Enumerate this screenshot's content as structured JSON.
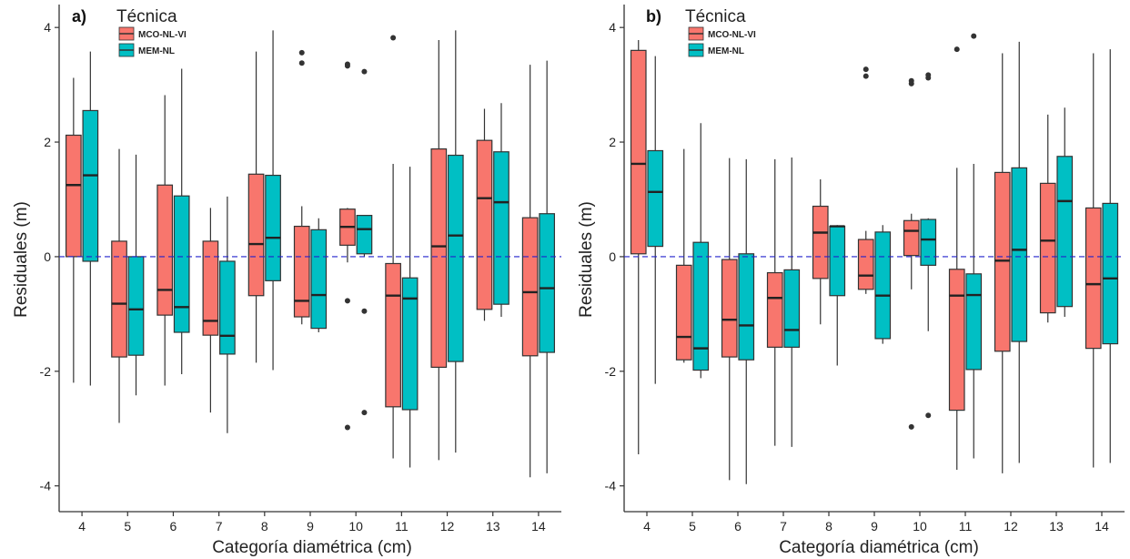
{
  "chart_data": [
    {
      "type": "boxplot",
      "panel_label": "a)",
      "xlabel": "Categoría diamétrica (cm)",
      "ylabel": "Residuales (m)",
      "ylim": [
        -4.45,
        4.4
      ],
      "yticks": [
        -4,
        -2,
        0,
        2,
        4
      ],
      "reference_line": {
        "y": 0,
        "style": "dashed",
        "color": "#2222cc"
      },
      "legend": {
        "title": "Técnica",
        "placement": "top-left"
      },
      "categories": [
        "4",
        "5",
        "6",
        "7",
        "8",
        "9",
        "10",
        "11",
        "12",
        "13",
        "14"
      ],
      "series": [
        {
          "name": "MCO-NL-VI",
          "color": "#F8766D",
          "boxes": [
            {
              "min": -2.2,
              "q1": 0.0,
              "median": 1.25,
              "q3": 2.12,
              "max": 3.12,
              "outliers": []
            },
            {
              "min": -2.9,
              "q1": -1.75,
              "median": -0.82,
              "q3": 0.27,
              "max": 1.88,
              "outliers": []
            },
            {
              "min": -2.25,
              "q1": -1.02,
              "median": -0.58,
              "q3": 1.25,
              "max": 2.82,
              "outliers": []
            },
            {
              "min": -2.72,
              "q1": -1.37,
              "median": -1.12,
              "q3": 0.27,
              "max": 0.85,
              "outliers": []
            },
            {
              "min": -1.85,
              "q1": -0.68,
              "median": 0.22,
              "q3": 1.44,
              "max": 3.58,
              "outliers": []
            },
            {
              "min": -1.18,
              "q1": -1.05,
              "median": -0.77,
              "q3": 0.53,
              "max": 0.88,
              "outliers": [
                3.56,
                3.38
              ]
            },
            {
              "min": -0.1,
              "q1": 0.2,
              "median": 0.52,
              "q3": 0.83,
              "max": 0.85,
              "outliers": [
                3.36,
                3.33,
                -0.77,
                -2.98
              ]
            },
            {
              "min": -3.52,
              "q1": -2.62,
              "median": -0.68,
              "q3": -0.12,
              "max": 1.62,
              "outliers": [
                3.82
              ]
            },
            {
              "min": -3.55,
              "q1": -1.93,
              "median": 0.18,
              "q3": 1.88,
              "max": 3.78,
              "outliers": []
            },
            {
              "min": -1.12,
              "q1": -0.92,
              "median": 1.02,
              "q3": 2.03,
              "max": 2.58,
              "outliers": []
            },
            {
              "min": -3.85,
              "q1": -1.73,
              "median": -0.62,
              "q3": 0.68,
              "max": 3.35,
              "outliers": []
            }
          ]
        },
        {
          "name": "MEM-NL",
          "color": "#00BFC4",
          "boxes": [
            {
              "min": -2.25,
              "q1": -0.08,
              "median": 1.42,
              "q3": 2.55,
              "max": 3.58,
              "outliers": []
            },
            {
              "min": -2.42,
              "q1": -1.72,
              "median": -0.92,
              "q3": 0.0,
              "max": 1.78,
              "outliers": []
            },
            {
              "min": -2.05,
              "q1": -1.32,
              "median": -0.88,
              "q3": 1.06,
              "max": 3.28,
              "outliers": []
            },
            {
              "min": -3.08,
              "q1": -1.7,
              "median": -1.38,
              "q3": -0.08,
              "max": 1.05,
              "outliers": []
            },
            {
              "min": -1.98,
              "q1": -0.42,
              "median": 0.33,
              "q3": 1.42,
              "max": 3.95,
              "outliers": []
            },
            {
              "min": -1.32,
              "q1": -1.25,
              "median": -0.67,
              "q3": 0.47,
              "max": 0.67,
              "outliers": []
            },
            {
              "min": 0.0,
              "q1": 0.05,
              "median": 0.48,
              "q3": 0.72,
              "max": 0.72,
              "outliers": [
                3.23,
                -0.95,
                -2.72
              ]
            },
            {
              "min": -3.68,
              "q1": -2.67,
              "median": -0.73,
              "q3": -0.37,
              "max": 1.57,
              "outliers": []
            },
            {
              "min": -3.42,
              "q1": -1.83,
              "median": 0.37,
              "q3": 1.77,
              "max": 3.95,
              "outliers": []
            },
            {
              "min": -1.05,
              "q1": -0.83,
              "median": 0.95,
              "q3": 1.83,
              "max": 2.68,
              "outliers": []
            },
            {
              "min": -3.78,
              "q1": -1.67,
              "median": -0.55,
              "q3": 0.75,
              "max": 3.42,
              "outliers": []
            }
          ]
        }
      ]
    },
    {
      "type": "boxplot",
      "panel_label": "b)",
      "xlabel": "Categoría diamétrica (cm)",
      "ylabel": "Residuales (m)",
      "ylim": [
        -4.45,
        4.4
      ],
      "yticks": [
        -4,
        -2,
        0,
        2,
        4
      ],
      "reference_line": {
        "y": 0,
        "style": "dashed",
        "color": "#2222cc"
      },
      "legend": {
        "title": "Técnica",
        "placement": "top-left"
      },
      "categories": [
        "4",
        "5",
        "6",
        "7",
        "8",
        "9",
        "10",
        "11",
        "12",
        "13",
        "14"
      ],
      "series": [
        {
          "name": "MCO-NL-VI",
          "color": "#F8766D",
          "boxes": [
            {
              "min": -3.45,
              "q1": 0.05,
              "median": 1.62,
              "q3": 3.6,
              "max": 3.78,
              "outliers": []
            },
            {
              "min": -1.85,
              "q1": -1.8,
              "median": -1.4,
              "q3": -0.15,
              "max": 1.88,
              "outliers": []
            },
            {
              "min": -3.9,
              "q1": -1.75,
              "median": -1.1,
              "q3": -0.05,
              "max": 1.72,
              "outliers": []
            },
            {
              "min": -3.3,
              "q1": -1.58,
              "median": -0.72,
              "q3": -0.28,
              "max": 1.7,
              "outliers": []
            },
            {
              "min": -1.18,
              "q1": -0.38,
              "median": 0.42,
              "q3": 0.88,
              "max": 1.35,
              "outliers": []
            },
            {
              "min": -0.65,
              "q1": -0.57,
              "median": -0.33,
              "q3": 0.3,
              "max": 0.45,
              "outliers": [
                3.15,
                3.27
              ]
            },
            {
              "min": -0.57,
              "q1": 0.02,
              "median": 0.45,
              "q3": 0.63,
              "max": 0.75,
              "outliers": [
                3.07,
                3.02,
                -2.97
              ]
            },
            {
              "min": -3.72,
              "q1": -2.68,
              "median": -0.68,
              "q3": -0.22,
              "max": 1.55,
              "outliers": [
                3.62
              ]
            },
            {
              "min": -3.78,
              "q1": -1.65,
              "median": -0.07,
              "q3": 1.47,
              "max": 3.55,
              "outliers": []
            },
            {
              "min": -1.15,
              "q1": -0.98,
              "median": 0.28,
              "q3": 1.28,
              "max": 2.48,
              "outliers": []
            },
            {
              "min": -3.68,
              "q1": -1.6,
              "median": -0.48,
              "q3": 0.85,
              "max": 3.55,
              "outliers": []
            }
          ]
        },
        {
          "name": "MEM-NL",
          "color": "#00BFC4",
          "boxes": [
            {
              "min": -2.22,
              "q1": 0.18,
              "median": 1.13,
              "q3": 1.85,
              "max": 3.5,
              "outliers": []
            },
            {
              "min": -2.12,
              "q1": -1.98,
              "median": -1.6,
              "q3": 0.25,
              "max": 2.33,
              "outliers": []
            },
            {
              "min": -3.97,
              "q1": -1.8,
              "median": -1.2,
              "q3": 0.05,
              "max": 1.7,
              "outliers": []
            },
            {
              "min": -3.32,
              "q1": -1.58,
              "median": -1.28,
              "q3": -0.23,
              "max": 1.73,
              "outliers": []
            },
            {
              "min": -1.9,
              "q1": -0.68,
              "median": 0.53,
              "q3": 0.53,
              "max": 0.55,
              "outliers": []
            },
            {
              "min": -1.52,
              "q1": -1.43,
              "median": -0.68,
              "q3": 0.43,
              "max": 0.55,
              "outliers": []
            },
            {
              "min": -1.3,
              "q1": -0.15,
              "median": 0.3,
              "q3": 0.65,
              "max": 0.67,
              "outliers": [
                3.17,
                3.12,
                -2.77
              ]
            },
            {
              "min": -3.52,
              "q1": -1.97,
              "median": -0.67,
              "q3": -0.3,
              "max": 1.62,
              "outliers": [
                3.85
              ]
            },
            {
              "min": -3.6,
              "q1": -1.48,
              "median": 0.12,
              "q3": 1.55,
              "max": 3.75,
              "outliers": []
            },
            {
              "min": -1.05,
              "q1": -0.87,
              "median": 0.97,
              "q3": 1.75,
              "max": 2.6,
              "outliers": []
            },
            {
              "min": -3.6,
              "q1": -1.52,
              "median": -0.38,
              "q3": 0.93,
              "max": 3.62,
              "outliers": []
            }
          ]
        }
      ]
    }
  ]
}
